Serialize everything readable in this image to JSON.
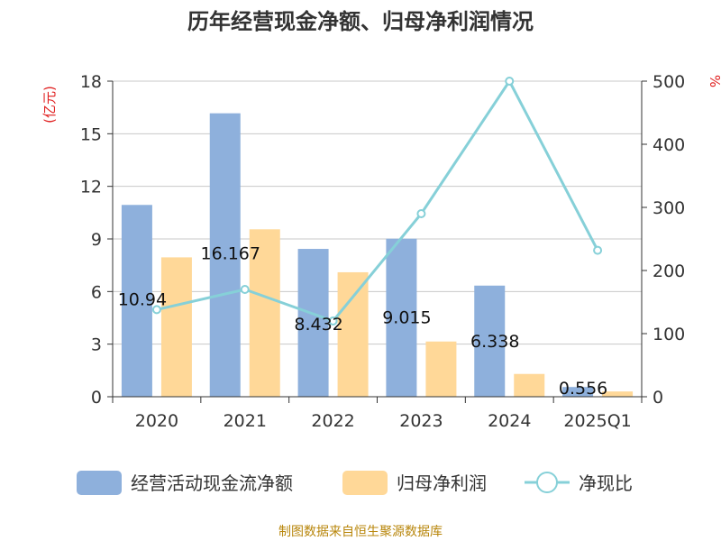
{
  "chart_data": {
    "type": "bar",
    "title": "历年经营现金净额、归母净利润情况",
    "categories": [
      "2020",
      "2021",
      "2022",
      "2023",
      "2024",
      "2025Q1"
    ],
    "y_left": {
      "unit": "(亿元)",
      "ticks": [
        0,
        3,
        6,
        9,
        12,
        15,
        18
      ],
      "range": [
        0,
        18
      ]
    },
    "y_right": {
      "unit": "%",
      "ticks": [
        0,
        100,
        200,
        300,
        400,
        500
      ],
      "range": [
        0,
        500
      ]
    },
    "series": [
      {
        "name": "经营活动现金流净额",
        "type": "bar",
        "axis": "left",
        "color": "#8eb0dc",
        "values": [
          10.94,
          16.167,
          8.432,
          9.015,
          6.338,
          0.556
        ],
        "labels": [
          "10.94",
          "16.167",
          "8.432",
          "9.015",
          "6.338",
          "0.556"
        ]
      },
      {
        "name": "归母净利润",
        "type": "bar",
        "axis": "left",
        "color": "#ffd898",
        "values": [
          7.95,
          9.55,
          7.1,
          3.15,
          1.3,
          0.3
        ]
      },
      {
        "name": "净现比",
        "type": "line",
        "axis": "right",
        "color": "#86d0d8",
        "values": [
          138,
          170,
          120,
          290,
          500,
          232
        ]
      }
    ],
    "grid": true,
    "legend": "bottom"
  },
  "source": "制图数据来自恒生聚源数据库"
}
